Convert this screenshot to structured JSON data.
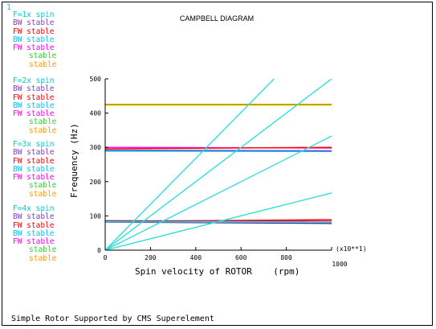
{
  "corner_label": "1",
  "chart_data": {
    "type": "line",
    "title": "CAMPBELL DIAGRAM",
    "xlabel": "Spin velocity of ROTOR",
    "xunit": "(rpm)",
    "ylabel": "Frequency (Hz)",
    "x_scale_note": "(x10**1)",
    "xlim": [
      0,
      1000
    ],
    "ylim": [
      0,
      500
    ],
    "xticks": [
      "0",
      "200",
      "400",
      "600",
      "800",
      "1000"
    ],
    "yticks": [
      "0",
      "100",
      "200",
      "300",
      "400",
      "500"
    ],
    "grid": false,
    "series": [
      {
        "color": "#ffff00",
        "x": [
          0,
          1000
        ],
        "y": [
          423,
          423
        ]
      },
      {
        "color": "#b8860b",
        "x": [
          0,
          1000
        ],
        "y": [
          425,
          425
        ]
      },
      {
        "color": "#ff00ff",
        "x": [
          0,
          1000
        ],
        "y": [
          300,
          298
        ]
      },
      {
        "color": "#ff0000",
        "x": [
          0,
          1000
        ],
        "y": [
          296,
          300
        ]
      },
      {
        "color": "#7f3fbf",
        "x": [
          0,
          1000
        ],
        "y": [
          292,
          290
        ]
      },
      {
        "color": "#00bfff",
        "x": [
          0,
          1000
        ],
        "y": [
          289,
          288
        ]
      },
      {
        "color": "#ff0000",
        "x": [
          0,
          1000
        ],
        "y": [
          84,
          89
        ]
      },
      {
        "color": "#800080",
        "x": [
          0,
          1000
        ],
        "y": [
          82,
          78
        ]
      },
      {
        "color": "#b03060",
        "x": [
          0,
          1000
        ],
        "y": [
          86,
          85
        ]
      },
      {
        "color": "#00e5e5",
        "x": [
          0,
          1000
        ],
        "y": [
          83,
          81
        ]
      },
      {
        "color": "#33dddd",
        "x": [
          0,
          746
        ],
        "y": [
          0,
          500
        ]
      },
      {
        "color": "#33dddd",
        "x": [
          0,
          1000
        ],
        "y": [
          0,
          500
        ]
      },
      {
        "color": "#33dddd",
        "x": [
          0,
          1000
        ],
        "y": [
          0,
          333
        ]
      },
      {
        "color": "#33dddd",
        "x": [
          0,
          1000
        ],
        "y": [
          0,
          167
        ]
      }
    ]
  },
  "legend": [
    {
      "items": [
        {
          "text": "F=1x spin",
          "color": "#00cccc",
          "indent": false
        },
        {
          "text": "BW stable",
          "color": "#7f3fbf",
          "indent": false
        },
        {
          "text": "FW stable",
          "color": "#ff0000",
          "indent": false
        },
        {
          "text": "BW stable",
          "color": "#00bfff",
          "indent": false
        },
        {
          "text": "FW stable",
          "color": "#ff00ff",
          "indent": false
        },
        {
          "text": "stable",
          "color": "#33cc33",
          "indent": true
        },
        {
          "text": "stable",
          "color": "#ff9900",
          "indent": true
        }
      ]
    },
    {
      "items": [
        {
          "text": "F=2x spin",
          "color": "#00cccc",
          "indent": false
        },
        {
          "text": "BW stable",
          "color": "#7f3fbf",
          "indent": false
        },
        {
          "text": "FW stable",
          "color": "#ff0000",
          "indent": false
        },
        {
          "text": "BW stable",
          "color": "#00bfff",
          "indent": false
        },
        {
          "text": "FW stable",
          "color": "#ff00ff",
          "indent": false
        },
        {
          "text": "stable",
          "color": "#33cc33",
          "indent": true
        },
        {
          "text": "stable",
          "color": "#ff9900",
          "indent": true
        }
      ]
    },
    {
      "items": [
        {
          "text": "F=3x spin",
          "color": "#00cccc",
          "indent": false
        },
        {
          "text": "BW stable",
          "color": "#7f3fbf",
          "indent": false
        },
        {
          "text": "FW stable",
          "color": "#ff0000",
          "indent": false
        },
        {
          "text": "BW stable",
          "color": "#00bfff",
          "indent": false
        },
        {
          "text": "FW stable",
          "color": "#ff00ff",
          "indent": false
        },
        {
          "text": "stable",
          "color": "#33cc33",
          "indent": true
        },
        {
          "text": "stable",
          "color": "#ff9900",
          "indent": true
        }
      ]
    },
    {
      "items": [
        {
          "text": "F=4x spin",
          "color": "#00cccc",
          "indent": false
        },
        {
          "text": "BW stable",
          "color": "#7f3fbf",
          "indent": false
        },
        {
          "text": "FW stable",
          "color": "#ff0000",
          "indent": false
        },
        {
          "text": "BW stable",
          "color": "#00bfff",
          "indent": false
        },
        {
          "text": "FW stable",
          "color": "#ff00ff",
          "indent": false
        },
        {
          "text": "stable",
          "color": "#33cc33",
          "indent": true
        },
        {
          "text": "stable",
          "color": "#ff9900",
          "indent": true
        }
      ]
    }
  ],
  "footer": "Simple Rotor Supported by CMS Superelement"
}
